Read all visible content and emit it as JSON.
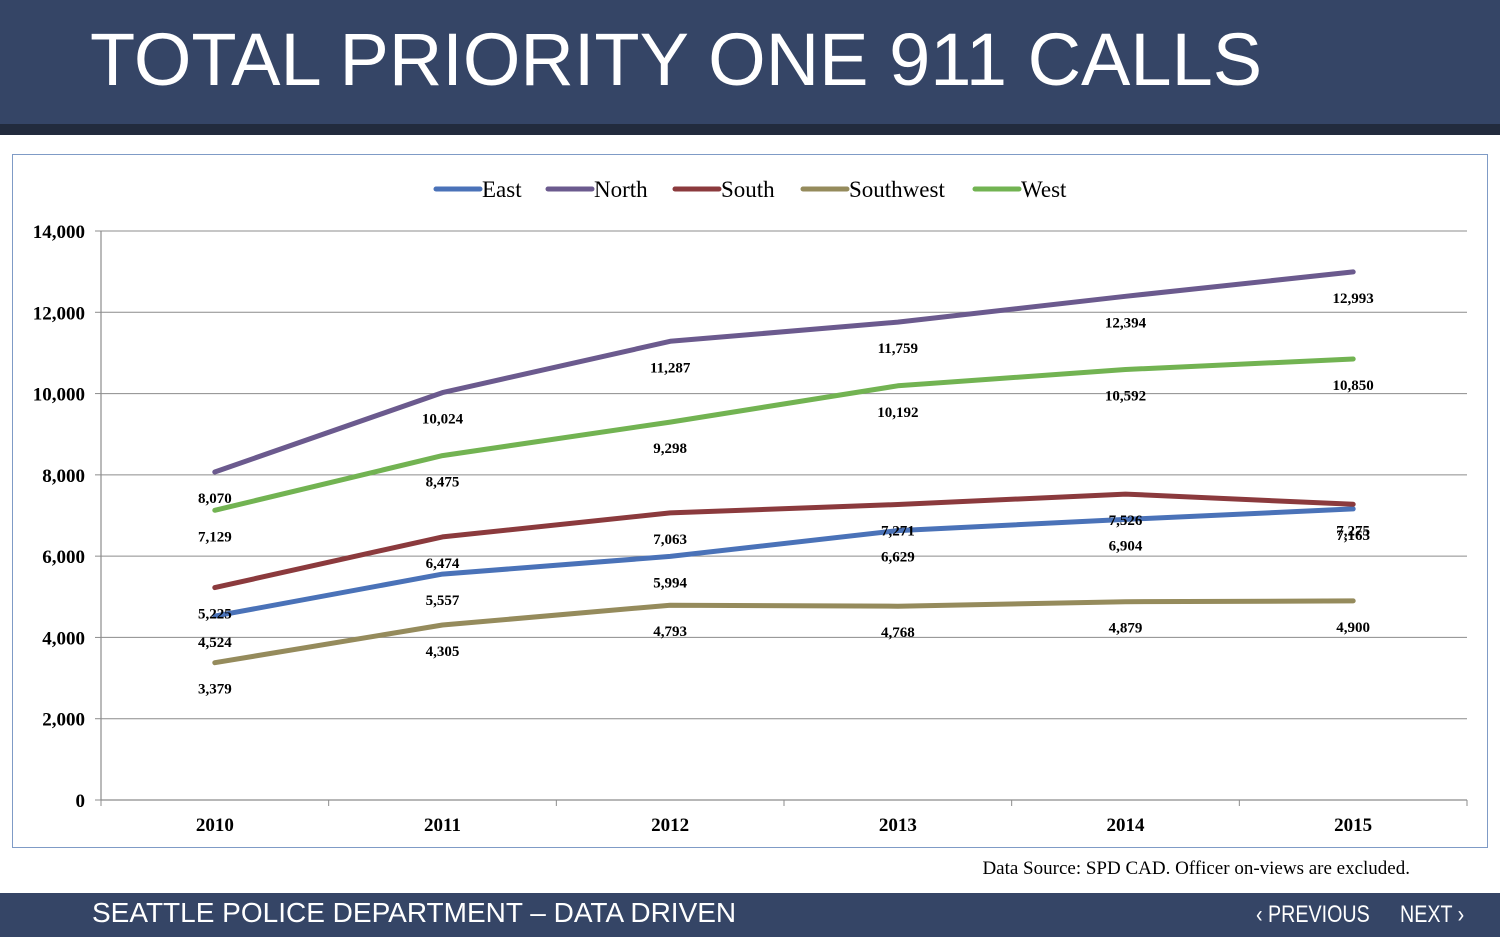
{
  "header": {
    "title": "TOTAL PRIORITY ONE 911 CALLS"
  },
  "chart_data": {
    "type": "line",
    "title": "",
    "xlabel": "",
    "ylabel": "",
    "categories": [
      "2010",
      "2011",
      "2012",
      "2013",
      "2014",
      "2015"
    ],
    "ylim": [
      0,
      14000
    ],
    "yticks": [
      0,
      2000,
      4000,
      6000,
      8000,
      10000,
      12000,
      14000
    ],
    "ytick_labels": [
      "0",
      "2,000",
      "4,000",
      "6,000",
      "8,000",
      "10,000",
      "12,000",
      "14,000"
    ],
    "grid": true,
    "legend_position": "top-center",
    "series": [
      {
        "name": "East",
        "color": "#4a72b8",
        "values": [
          4524,
          5557,
          5994,
          6629,
          6904,
          7163
        ],
        "labels": [
          "4,524",
          "5,557",
          "5,994",
          "6,629",
          "6,904",
          "7,163"
        ]
      },
      {
        "name": "North",
        "color": "#6b5a8e",
        "values": [
          8070,
          10024,
          11287,
          11759,
          12394,
          12993
        ],
        "labels": [
          "8,070",
          "10,024",
          "11,287",
          "11,759",
          "12,394",
          "12,993"
        ]
      },
      {
        "name": "South",
        "color": "#8b3a3d",
        "values": [
          5225,
          6474,
          7063,
          7271,
          7526,
          7275
        ],
        "labels": [
          "5,225",
          "6,474",
          "7,063",
          "7,271",
          "7,526",
          "7,275"
        ]
      },
      {
        "name": "Southwest",
        "color": "#958b5c",
        "values": [
          3379,
          4305,
          4793,
          4768,
          4879,
          4900
        ],
        "labels": [
          "3,379",
          "4,305",
          "4,793",
          "4,768",
          "4,879",
          "4,900"
        ]
      },
      {
        "name": "West",
        "color": "#72b352",
        "values": [
          7129,
          8475,
          9298,
          10192,
          10592,
          10850
        ],
        "labels": [
          "7,129",
          "8,475",
          "9,298",
          "10,192",
          "10,592",
          "10,850"
        ]
      }
    ]
  },
  "source_note": "Data Source: SPD CAD.  Officer on-views are excluded.",
  "footer": {
    "department": "SEATTLE POLICE DEPARTMENT – DATA DRIVEN",
    "previous_label": "PREVIOUS",
    "next_label": "NEXT",
    "prev_icon": "‹",
    "next_icon": "›"
  }
}
